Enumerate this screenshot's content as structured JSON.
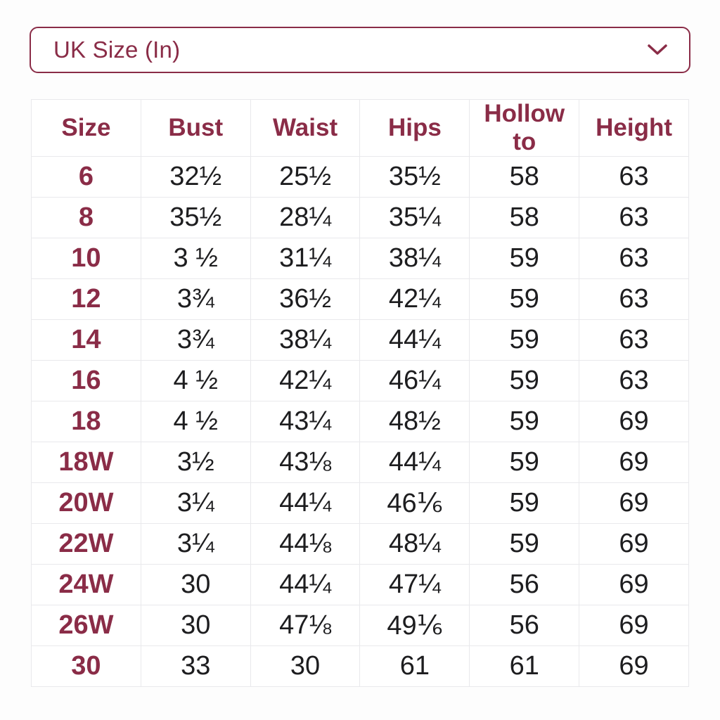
{
  "colors": {
    "accent": "#8a2c47",
    "text": "#1d1d1f",
    "grid": "#e9e9ec",
    "background": "#fdfdfd"
  },
  "dropdown": {
    "label": "UK Size (In)",
    "chevron_icon": "chevron-down"
  },
  "table": {
    "headers": [
      "Size",
      "Bust",
      "Waist",
      "Hips",
      "Hollow to",
      "Height"
    ],
    "column_keys": [
      "size",
      "bust",
      "waist",
      "hips",
      "hollow_to",
      "height"
    ],
    "rows": [
      {
        "size": "6",
        "bust": "32½",
        "waist": "25½",
        "hips": "35½",
        "hollow_to": "58",
        "height": "63"
      },
      {
        "size": "8",
        "bust": "35½",
        "waist": "28¼",
        "hips": "35¼",
        "hollow_to": "58",
        "height": "63"
      },
      {
        "size": "10",
        "bust": "3 ½",
        "waist": "31¼",
        "hips": "38¼",
        "hollow_to": "59",
        "height": "63"
      },
      {
        "size": "12",
        "bust": "3¾",
        "waist": "36½",
        "hips": "42¼",
        "hollow_to": "59",
        "height": "63"
      },
      {
        "size": "14",
        "bust": "3¾",
        "waist": "38¼",
        "hips": "44¼",
        "hollow_to": "59",
        "height": "63"
      },
      {
        "size": "16",
        "bust": "4 ½",
        "waist": "42¼",
        "hips": "46¼",
        "hollow_to": "59",
        "height": "63"
      },
      {
        "size": "18",
        "bust": "4 ½",
        "waist": "43¼",
        "hips": "48½",
        "hollow_to": "59",
        "height": "69"
      },
      {
        "size": "18W",
        "bust": "3½",
        "waist": "43⅛",
        "hips": "44¼",
        "hollow_to": "59",
        "height": "69"
      },
      {
        "size": "20W",
        "bust": "3¼",
        "waist": "44¼",
        "hips": "46⅙",
        "hollow_to": "59",
        "height": "69"
      },
      {
        "size": "22W",
        "bust": "3¼",
        "waist": "44⅛",
        "hips": "48¼",
        "hollow_to": "59",
        "height": "69"
      },
      {
        "size": "24W",
        "bust": "30",
        "waist": "44¼",
        "hips": "47¼",
        "hollow_to": "56",
        "height": "69"
      },
      {
        "size": "26W",
        "bust": "30",
        "waist": "47⅛",
        "hips": "49⅙",
        "hollow_to": "56",
        "height": "69"
      },
      {
        "size": "30",
        "bust": "33",
        "waist": "30",
        "hips": "61",
        "hollow_to": "61",
        "height": "69"
      }
    ]
  }
}
